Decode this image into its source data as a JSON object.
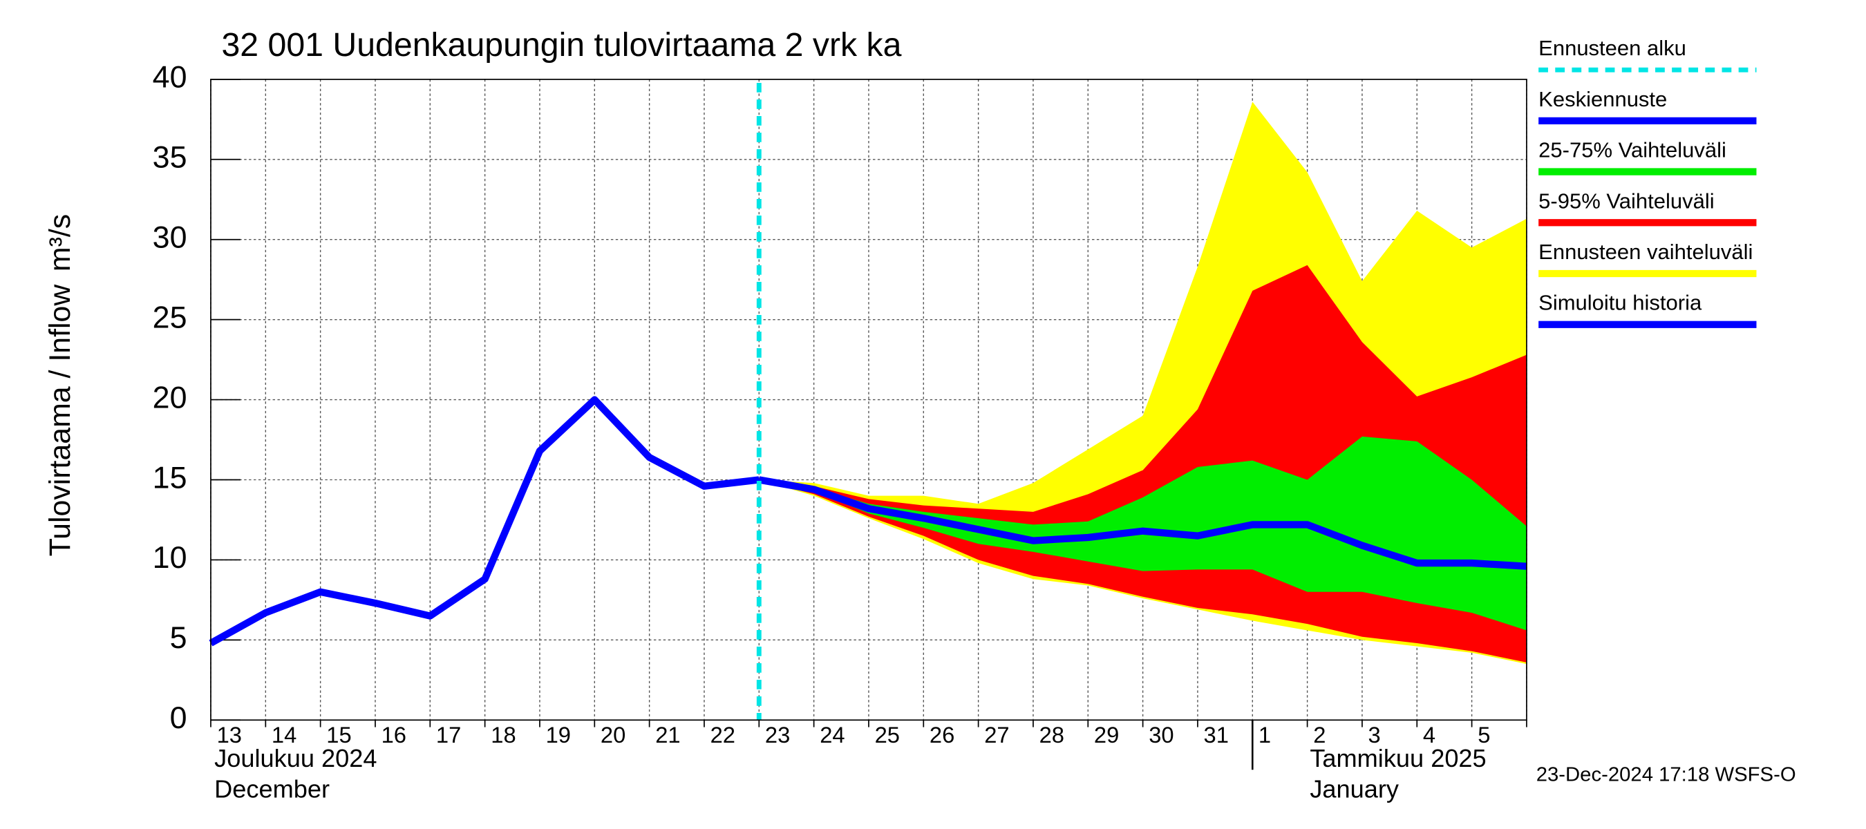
{
  "chart_data": {
    "type": "line",
    "title": "32 001 Uudenkaupungin tulovirtaama 2 vrk ka",
    "y_label": "Tulovirtaama / Inflow",
    "y_unit": "m³/s",
    "month_labels": [
      {
        "fi": "Joulukuu  2024",
        "en": "December"
      },
      {
        "fi": "Tammikuu  2025",
        "en": "January"
      }
    ],
    "footer": "23-Dec-2024 17:18 WSFS-O",
    "categories": [
      "13",
      "14",
      "15",
      "16",
      "17",
      "18",
      "19",
      "20",
      "21",
      "22",
      "23",
      "24",
      "25",
      "26",
      "27",
      "28",
      "29",
      "30",
      "31",
      "1",
      "2",
      "3",
      "4",
      "5",
      null
    ],
    "ylim": [
      0,
      40
    ],
    "yticks": [
      0,
      5,
      10,
      15,
      20,
      25,
      30,
      35,
      40
    ],
    "grid": true,
    "forecast_start": {
      "name": "Ennusteen alku",
      "color": "#00e5e5"
    },
    "series": [
      {
        "name": "Simuloitu historia",
        "color": "#0000ff",
        "values": [
          4.8,
          6.7,
          8.0,
          7.3,
          6.5,
          8.8,
          16.8,
          20.0,
          16.4,
          14.6,
          15.0,
          null,
          null,
          null,
          null,
          null,
          null,
          null,
          null,
          null,
          null,
          null,
          null,
          null,
          null
        ]
      },
      {
        "name": "Keskiennuste",
        "color": "#0000ff",
        "values": [
          null,
          null,
          null,
          null,
          null,
          null,
          null,
          null,
          null,
          null,
          15.0,
          14.4,
          13.2,
          12.6,
          11.9,
          11.2,
          11.4,
          11.8,
          11.5,
          12.2,
          12.2,
          10.9,
          9.8,
          9.8,
          9.6
        ]
      }
    ],
    "bands": [
      {
        "name": "Ennusteen vaihteluväli",
        "color": "#ffff00",
        "high": [
          null,
          null,
          null,
          null,
          null,
          null,
          null,
          null,
          null,
          null,
          15.0,
          14.8,
          14.0,
          14.0,
          13.5,
          14.8,
          16.9,
          19.0,
          28.3,
          38.6,
          34.2,
          27.4,
          31.8,
          29.5,
          31.3
        ],
        "low": [
          null,
          null,
          null,
          null,
          null,
          null,
          null,
          null,
          null,
          null,
          15.0,
          14.0,
          12.6,
          11.3,
          9.8,
          8.8,
          8.4,
          7.6,
          6.9,
          6.2,
          5.6,
          5.0,
          4.6,
          4.2,
          3.5
        ]
      },
      {
        "name": "5-95% Vaihteluväli",
        "color": "#ff0000",
        "high": [
          null,
          null,
          null,
          null,
          null,
          null,
          null,
          null,
          null,
          null,
          15.0,
          14.6,
          13.8,
          13.4,
          13.2,
          13.0,
          14.1,
          15.6,
          19.4,
          26.8,
          28.4,
          23.6,
          20.2,
          21.4,
          22.8
        ],
        "low": [
          null,
          null,
          null,
          null,
          null,
          null,
          null,
          null,
          null,
          null,
          15.0,
          14.1,
          12.7,
          11.5,
          10.0,
          9.0,
          8.5,
          7.7,
          7.0,
          6.6,
          6.0,
          5.2,
          4.8,
          4.3,
          3.6
        ]
      },
      {
        "name": "25-75% Vaihteluväli",
        "color": "#00ee00",
        "high": [
          null,
          null,
          null,
          null,
          null,
          null,
          null,
          null,
          null,
          null,
          15.0,
          14.5,
          13.5,
          13.0,
          12.6,
          12.2,
          12.4,
          13.9,
          15.8,
          16.2,
          15.0,
          17.7,
          17.4,
          15.0,
          12.1
        ],
        "low": [
          null,
          null,
          null,
          null,
          null,
          null,
          null,
          null,
          null,
          null,
          15.0,
          14.3,
          12.9,
          12.0,
          11.0,
          10.5,
          9.9,
          9.3,
          9.4,
          9.4,
          8.0,
          8.0,
          7.3,
          6.7,
          5.6
        ]
      }
    ]
  }
}
